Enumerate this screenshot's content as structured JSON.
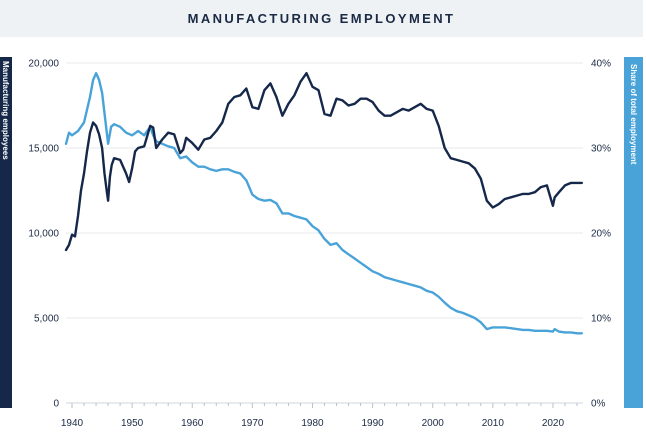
{
  "chart_data": {
    "type": "line",
    "title": "MANUFACTURING EMPLOYMENT",
    "ylabel_left": "Manufacturing employees",
    "ylabel_right": "Share of total employment",
    "x_ticks": [
      "1940",
      "1950",
      "1960",
      "1970",
      "1980",
      "1990",
      "2000",
      "2010",
      "2020"
    ],
    "y_left_ticks": [
      "20,000",
      "15,000",
      "10,000",
      "5,000",
      "0"
    ],
    "y_right_ticks": [
      "40%",
      "30%",
      "20%",
      "10%",
      "0%"
    ],
    "xlim": [
      1939,
      2025
    ],
    "ylim_left": [
      0,
      20000
    ],
    "ylim_right": [
      0,
      40
    ],
    "grid": true,
    "series": [
      {
        "name": "Manufacturing employees",
        "axis": "left",
        "color": "#16284a",
        "x": [
          1939,
          1939.5,
          1940,
          1940.5,
          1941,
          1941.5,
          1942,
          1942.5,
          1943,
          1943.5,
          1944,
          1944.5,
          1945,
          1945.4,
          1945.8,
          1946,
          1946.3,
          1946.6,
          1947,
          1948,
          1949,
          1949.5,
          1950,
          1950.5,
          1951,
          1952,
          1953,
          1953.5,
          1954,
          1955,
          1956,
          1957,
          1958,
          1958.5,
          1959,
          1960,
          1961,
          1962,
          1963,
          1964,
          1965,
          1966,
          1967,
          1968,
          1969,
          1970,
          1971,
          1972,
          1973,
          1974,
          1975,
          1976,
          1977,
          1978,
          1979,
          1980,
          1981,
          1982,
          1983,
          1984,
          1985,
          1986,
          1987,
          1988,
          1989,
          1990,
          1991,
          1992,
          1993,
          1994,
          1995,
          1996,
          1997,
          1998,
          1999,
          2000,
          2001,
          2002,
          2003,
          2004,
          2005,
          2006,
          2007,
          2008,
          2009,
          2010,
          2011,
          2012,
          2013,
          2014,
          2015,
          2016,
          2017,
          2018,
          2019,
          2020,
          2020.3,
          2021,
          2022,
          2023,
          2024,
          2024.8
        ],
        "values": [
          9000,
          9300,
          9900,
          9800,
          11000,
          12500,
          13500,
          14800,
          15900,
          16500,
          16300,
          15800,
          15000,
          13500,
          12400,
          11900,
          13300,
          14000,
          14400,
          14300,
          13500,
          13000,
          13800,
          14800,
          15000,
          15100,
          16300,
          16200,
          15000,
          15500,
          15900,
          15800,
          14700,
          14900,
          15600,
          15300,
          14900,
          15500,
          15600,
          16000,
          16500,
          17600,
          18000,
          18100,
          18500,
          17400,
          17300,
          18400,
          18800,
          18000,
          16900,
          17600,
          18100,
          18900,
          19400,
          18600,
          18400,
          17000,
          16900,
          17900,
          17800,
          17500,
          17600,
          17900,
          17900,
          17700,
          17200,
          16900,
          16900,
          17100,
          17300,
          17200,
          17400,
          17600,
          17300,
          17200,
          16300,
          15000,
          14400,
          14300,
          14200,
          14100,
          13800,
          13200,
          11900,
          11500,
          11700,
          12000,
          12100,
          12200,
          12300,
          12300,
          12400,
          12700,
          12800,
          11600,
          12100,
          12400,
          12800,
          12950,
          12950,
          12950
        ]
      },
      {
        "name": "Share of total employment",
        "axis": "right",
        "color": "#4aa3d8",
        "x": [
          1939,
          1939.5,
          1940,
          1941,
          1942,
          1943,
          1943.5,
          1944,
          1944.5,
          1945,
          1945.5,
          1946,
          1946.5,
          1947,
          1948,
          1949,
          1950,
          1951,
          1952,
          1953,
          1953.5,
          1954,
          1955,
          1956,
          1957,
          1958,
          1959,
          1960,
          1961,
          1962,
          1963,
          1964,
          1965,
          1966,
          1967,
          1968,
          1969,
          1970,
          1971,
          1972,
          1973,
          1974,
          1975,
          1976,
          1977,
          1978,
          1979,
          1980,
          1981,
          1982,
          1983,
          1984,
          1985,
          1986,
          1987,
          1988,
          1989,
          1990,
          1991,
          1992,
          1993,
          1994,
          1995,
          1996,
          1997,
          1998,
          1999,
          2000,
          2001,
          2002,
          2003,
          2004,
          2005,
          2006,
          2007,
          2008,
          2009,
          2010,
          2011,
          2012,
          2013,
          2014,
          2015,
          2016,
          2017,
          2018,
          2019,
          2020,
          2020.3,
          2021,
          2022,
          2023,
          2024,
          2024.8
        ],
        "values": [
          30.5,
          31.8,
          31.5,
          32.0,
          33.0,
          36.0,
          38.0,
          38.8,
          38.0,
          36.5,
          33.5,
          30.5,
          32.5,
          32.8,
          32.5,
          31.8,
          31.5,
          32.0,
          31.5,
          32.5,
          31.5,
          30.8,
          30.5,
          30.2,
          30.0,
          28.8,
          29.0,
          28.3,
          27.8,
          27.8,
          27.5,
          27.3,
          27.5,
          27.5,
          27.2,
          27.0,
          26.2,
          24.5,
          24.0,
          23.8,
          23.9,
          23.5,
          22.3,
          22.3,
          22.0,
          21.8,
          21.6,
          20.8,
          20.3,
          19.3,
          18.6,
          18.8,
          18.0,
          17.5,
          17.0,
          16.5,
          16.0,
          15.5,
          15.2,
          14.8,
          14.6,
          14.4,
          14.2,
          14.0,
          13.8,
          13.6,
          13.2,
          13.0,
          12.5,
          11.8,
          11.2,
          10.8,
          10.6,
          10.3,
          10.0,
          9.5,
          8.7,
          8.9,
          8.9,
          8.9,
          8.8,
          8.7,
          8.6,
          8.6,
          8.5,
          8.5,
          8.5,
          8.4,
          8.7,
          8.4,
          8.3,
          8.3,
          8.2,
          8.2
        ]
      }
    ]
  }
}
